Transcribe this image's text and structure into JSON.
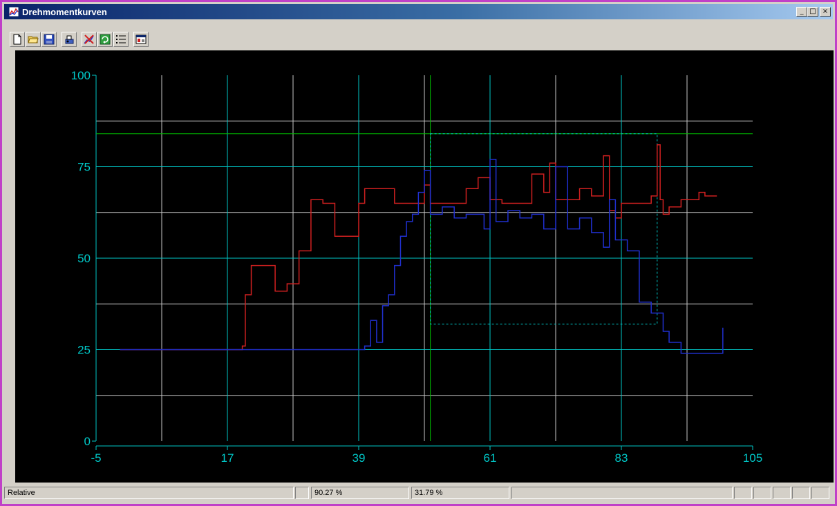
{
  "window": {
    "title": "Drehmomentkurven",
    "minimize": "_",
    "maximize": "□",
    "close": "×"
  },
  "toolbar": {
    "buttons": [
      "new-file",
      "open-folder",
      "save-disk",
      "print-chart",
      "reset-zoom",
      "refresh",
      "list-view",
      "properties"
    ]
  },
  "chart_data": {
    "type": "line",
    "xlim": [
      -5,
      105
    ],
    "ylim": [
      0,
      100
    ],
    "x_ticks": [
      "-5",
      "17",
      "39",
      "61",
      "83",
      "105"
    ],
    "y_ticks": [
      "0",
      "25",
      "50",
      "75",
      "100"
    ],
    "colors": {
      "background": "#000000",
      "grid_major": "#00c8c8",
      "grid_minor": "#c8c8c8",
      "axis": "#00c8c8",
      "cursor": "#00c000",
      "selection": "#00c8c8"
    },
    "cursor": {
      "x": 51,
      "y": 84
    },
    "selection": {
      "x1": 51,
      "x2": 89,
      "y1": 32,
      "y2": 84
    },
    "series": [
      {
        "color": "#d02020",
        "x": [
          -1,
          17,
          19.5,
          20,
          21,
          25,
          27,
          29,
          31,
          33,
          35,
          39,
          40,
          45,
          50,
          51,
          57,
          59,
          61,
          63,
          68,
          70,
          71,
          72,
          76,
          78,
          80,
          81,
          82,
          83,
          84,
          88,
          89,
          89.5,
          90,
          91,
          93,
          94,
          96,
          97,
          99
        ],
        "y": [
          25,
          25,
          26,
          40,
          48,
          41,
          43,
          52,
          66,
          65,
          56,
          65,
          69,
          65,
          70,
          65,
          69,
          72,
          66,
          65,
          73,
          68,
          76,
          66,
          69,
          67,
          78,
          63,
          61,
          65,
          65,
          67,
          81,
          66,
          62,
          64,
          66,
          66,
          68,
          67,
          67
        ]
      },
      {
        "color": "#2030d0",
        "x": [
          -1,
          15,
          17,
          30,
          40,
          41,
          42,
          43,
          44,
          45,
          46,
          47,
          48,
          49,
          50,
          51,
          53,
          55,
          57,
          59,
          60,
          61,
          62,
          64,
          66,
          68,
          70,
          72,
          74,
          76,
          78,
          80,
          81,
          82,
          84,
          86,
          88,
          90,
          91,
          93,
          95,
          97,
          99,
          100
        ],
        "y": [
          25,
          25,
          25,
          25,
          26,
          33,
          27,
          37,
          40,
          48,
          56,
          60,
          62,
          68,
          74,
          62,
          64,
          61,
          62,
          62,
          58,
          77,
          60,
          63,
          61,
          62,
          58,
          75,
          58,
          61,
          57,
          53,
          66,
          55,
          52,
          38,
          35,
          30,
          27,
          24,
          24,
          24,
          24,
          31
        ]
      }
    ]
  },
  "status": {
    "panel1": "Relative",
    "panel2": "",
    "panel3": "90.27 %",
    "panel4": "31.79 %",
    "panel5": ""
  }
}
